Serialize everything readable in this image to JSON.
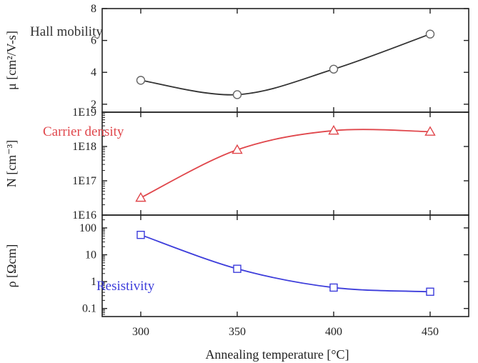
{
  "chart_data": [
    {
      "type": "line",
      "label": "Hall mobility",
      "ylabel": "μ [cm²/V-s]",
      "yscale": "linear",
      "ylim": [
        1.5,
        8
      ],
      "yticks": [
        2,
        4,
        6,
        8
      ],
      "ytick_labels": [
        "2",
        "4",
        "6",
        "8"
      ],
      "x": [
        300,
        350,
        400,
        450
      ],
      "values": [
        3.5,
        2.6,
        4.2,
        6.4
      ],
      "marker": "circle",
      "color": "#333333"
    },
    {
      "type": "line",
      "label": "Carrier density",
      "ylabel": "N [cm⁻³]",
      "yscale": "log",
      "ylim": [
        1e+16,
        1e+19
      ],
      "yticks": [
        1e+16,
        1e+17,
        1e+18,
        1e+19
      ],
      "ytick_labels": [
        "1E16",
        "1E17",
        "1E18",
        "1E19"
      ],
      "x": [
        300,
        350,
        400,
        450
      ],
      "values": [
        3.2e+16,
        8e+17,
        2.9e+18,
        2.7e+18
      ],
      "marker": "triangle",
      "color": "#e0474c"
    },
    {
      "type": "line",
      "label": "Resistivity",
      "ylabel": "ρ [Ωcm]",
      "yscale": "log",
      "ylim": [
        0.05,
        300
      ],
      "yticks": [
        0.1,
        1,
        10,
        100
      ],
      "ytick_labels": [
        "0.1",
        "1",
        "10",
        "100"
      ],
      "x": [
        300,
        350,
        400,
        450
      ],
      "values": [
        55,
        3,
        0.6,
        0.42
      ],
      "marker": "square",
      "color": "#3d3ddb"
    }
  ],
  "xaxis": {
    "label": "Annealing temperature [°C]",
    "xlim": [
      280,
      470
    ],
    "ticks": [
      300,
      350,
      400,
      450
    ],
    "tick_labels": [
      "300",
      "350",
      "400",
      "450"
    ]
  }
}
